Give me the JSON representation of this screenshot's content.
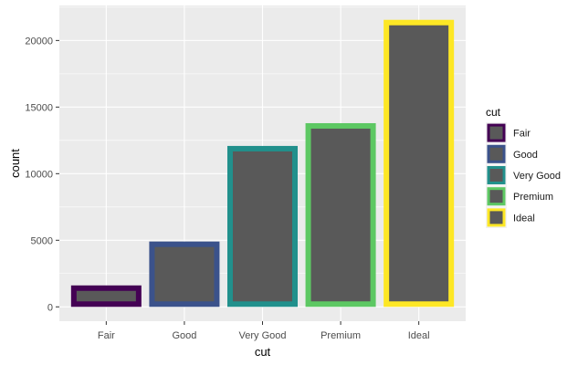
{
  "chart_data": {
    "type": "bar",
    "xlabel": "cut",
    "ylabel": "count",
    "categories": [
      "Fair",
      "Good",
      "Very Good",
      "Premium",
      "Ideal"
    ],
    "values": [
      1610,
      4906,
      12082,
      13791,
      21551
    ],
    "ylim": [
      -1077.55,
      22628.55
    ],
    "yticks": [
      0,
      5000,
      10000,
      15000,
      20000
    ],
    "ytick_labels": [
      "0",
      "5000",
      "10000",
      "15000",
      "20000"
    ],
    "grid": true,
    "fill_color": "#595959",
    "outline_colors": [
      "#440154",
      "#3B528B",
      "#21908C",
      "#5DC863",
      "#FDE725"
    ],
    "panel_background": "#EBEBEB",
    "legend": {
      "title": "cut",
      "position": "right",
      "entries": [
        "Fair",
        "Good",
        "Very Good",
        "Premium",
        "Ideal"
      ]
    }
  }
}
